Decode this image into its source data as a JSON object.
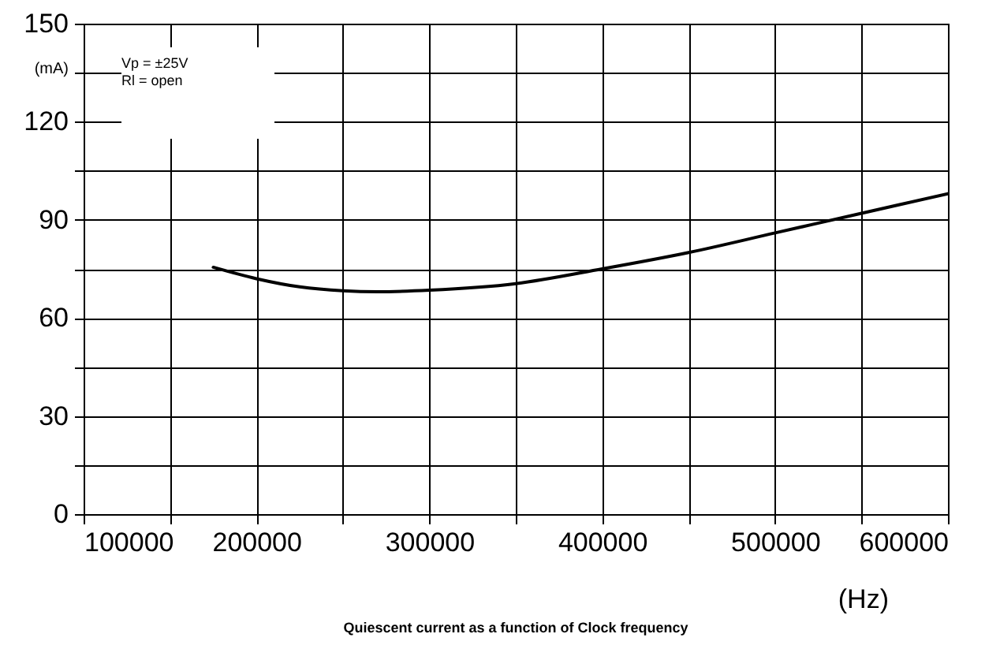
{
  "chart_data": {
    "type": "line",
    "title": "Quiescent current as a function of Clock frequency",
    "xlabel": "(Hz)",
    "ylabel": "(mA)",
    "annotations": [
      "Vp = ±25V",
      "Rl = open"
    ],
    "x": [
      175000,
      200000,
      225000,
      250000,
      270000,
      300000,
      350000,
      400000,
      450000,
      500000,
      550000,
      600000
    ],
    "series": [
      {
        "color": "#000000",
        "values": [
          75.5,
          72,
          69.5,
          68.3,
          68,
          68.5,
          70.5,
          75,
          80,
          86,
          92,
          98
        ]
      }
    ],
    "xlim": [
      100000,
      600000
    ],
    "xticks": [
      100000,
      {
        "value": 150000,
        "label": null
      },
      200000,
      {
        "value": 250000,
        "label": null
      },
      300000,
      {
        "value": 350000,
        "label": null
      },
      400000,
      {
        "value": 450000,
        "label": null
      },
      500000,
      {
        "value": 550000,
        "label": null
      },
      600000
    ],
    "ylim": [
      0,
      150
    ],
    "yticks": [
      0,
      {
        "value": 15,
        "label": null
      },
      30,
      {
        "value": 45,
        "label": null
      },
      60,
      {
        "value": 75,
        "label": null
      },
      90,
      {
        "value": 105,
        "label": null
      },
      120,
      {
        "value": 135,
        "label": null
      },
      150
    ],
    "grid": true,
    "marker": "none",
    "line_style": "solid"
  }
}
